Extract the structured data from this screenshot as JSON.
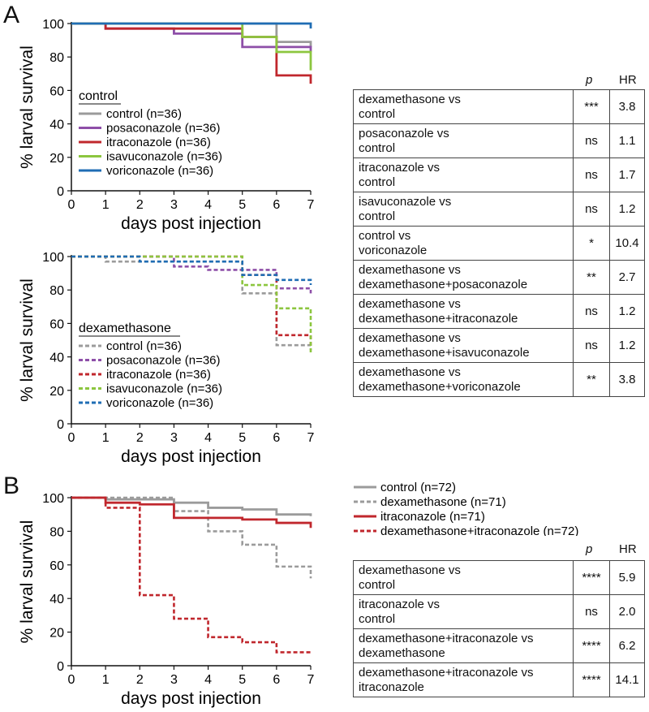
{
  "panels": {
    "a": {
      "letter": "A"
    },
    "b": {
      "letter": "B"
    }
  },
  "table_headers": {
    "p": "p",
    "hr": "HR"
  },
  "table_a": [
    {
      "comparison": "dexamethasone vs\ncontrol",
      "p": "***",
      "hr": "3.8"
    },
    {
      "comparison": "posaconazole vs\ncontrol",
      "p": "ns",
      "hr": "1.1"
    },
    {
      "comparison": "itraconazole vs\ncontrol",
      "p": "ns",
      "hr": "1.7"
    },
    {
      "comparison": "isavuconazole vs\ncontrol",
      "p": "ns",
      "hr": "1.2"
    },
    {
      "comparison": "control vs\nvoriconazole",
      "p": "*",
      "hr": "10.4"
    },
    {
      "comparison": "dexamethasone vs\ndexamethasone+posaconazole",
      "p": "**",
      "hr": "2.7"
    },
    {
      "comparison": "dexamethasone vs\ndexamethasone+itraconazole",
      "p": "ns",
      "hr": "1.2"
    },
    {
      "comparison": "dexamethasone vs\ndexamethasone+isavuconazole",
      "p": "ns",
      "hr": "1.2"
    },
    {
      "comparison": "dexamethasone vs\ndexamethasone+voriconazole",
      "p": "**",
      "hr": "3.8"
    }
  ],
  "table_b": [
    {
      "comparison": "dexamethasone vs\ncontrol",
      "p": "****",
      "hr": "5.9"
    },
    {
      "comparison": "itraconazole vs\ncontrol",
      "p": "ns",
      "hr": "2.0"
    },
    {
      "comparison": "dexamethasone+itraconazole vs\ndexamethasone",
      "p": "****",
      "hr": "6.2"
    },
    {
      "comparison": "dexamethasone+itraconazole vs\nitraconazole",
      "p": "****",
      "hr": "14.1"
    }
  ],
  "chart_data": [
    {
      "id": "a-control",
      "type": "line",
      "step": true,
      "xlabel": "days post injection",
      "ylabel": "% larval survival",
      "xlim": [
        0,
        7
      ],
      "ylim": [
        0,
        100
      ],
      "xticks": [
        0,
        1,
        2,
        3,
        4,
        5,
        6,
        7
      ],
      "yticks": [
        0,
        20,
        40,
        60,
        80,
        100
      ],
      "legend_title": "control",
      "series": [
        {
          "name": "control (n=36)",
          "color": "#9b9b9b",
          "dash": false,
          "x": [
            0,
            1,
            3,
            5,
            6,
            6,
            7
          ],
          "y": [
            100,
            100,
            100,
            100,
            97,
            89,
            86
          ]
        },
        {
          "name": "posaconazole (n=36)",
          "color": "#8e4fa8",
          "dash": false,
          "x": [
            0,
            1,
            3,
            5,
            6,
            7
          ],
          "y": [
            100,
            97,
            94,
            86,
            86,
            83
          ]
        },
        {
          "name": "itraconazole (n=36)",
          "color": "#c0272d",
          "dash": false,
          "x": [
            0,
            1,
            5,
            6,
            7
          ],
          "y": [
            100,
            97,
            92,
            69,
            64
          ]
        },
        {
          "name": "isavuconazole (n=36)",
          "color": "#8cc63f",
          "dash": false,
          "x": [
            0,
            5,
            6,
            7
          ],
          "y": [
            100,
            92,
            83,
            72
          ]
        },
        {
          "name": "voriconazole (n=36)",
          "color": "#1f6db4",
          "dash": false,
          "x": [
            0,
            7
          ],
          "y": [
            100,
            97
          ]
        }
      ]
    },
    {
      "id": "a-dexamethasone",
      "type": "line",
      "step": true,
      "xlabel": "days post injection",
      "ylabel": "% larval survival",
      "xlim": [
        0,
        7
      ],
      "ylim": [
        0,
        100
      ],
      "xticks": [
        0,
        1,
        2,
        3,
        4,
        5,
        6,
        7
      ],
      "yticks": [
        0,
        20,
        40,
        60,
        80,
        100
      ],
      "legend_title": "dexamethasone",
      "series": [
        {
          "name": "control (n=36)",
          "color": "#9b9b9b",
          "dash": true,
          "x": [
            0,
            1,
            5,
            6,
            7
          ],
          "y": [
            100,
            97,
            78,
            47,
            44
          ]
        },
        {
          "name": "posaconazole (n=36)",
          "color": "#8e4fa8",
          "dash": true,
          "x": [
            0,
            3,
            4,
            5,
            6,
            7
          ],
          "y": [
            100,
            94,
            92,
            92,
            81,
            78
          ]
        },
        {
          "name": "itraconazole (n=36)",
          "color": "#c0272d",
          "dash": true,
          "x": [
            0,
            5,
            6,
            7
          ],
          "y": [
            100,
            89,
            53,
            47
          ]
        },
        {
          "name": "isavuconazole (n=36)",
          "color": "#8cc63f",
          "dash": true,
          "x": [
            0,
            5,
            6,
            7
          ],
          "y": [
            100,
            83,
            69,
            42
          ]
        },
        {
          "name": "voriconazole (n=36)",
          "color": "#1f6db4",
          "dash": true,
          "x": [
            0,
            2,
            5,
            6,
            7
          ],
          "y": [
            100,
            97,
            89,
            86,
            83
          ]
        }
      ]
    },
    {
      "id": "b-main",
      "type": "line",
      "step": true,
      "xlabel": "days post injection",
      "ylabel": "% larval survival",
      "xlim": [
        0,
        7
      ],
      "ylim": [
        0,
        100
      ],
      "xticks": [
        0,
        1,
        2,
        3,
        4,
        5,
        6,
        7
      ],
      "yticks": [
        0,
        20,
        40,
        60,
        80,
        100
      ],
      "legend_title": "",
      "series": [
        {
          "name": "control (n=72)",
          "color": "#9b9b9b",
          "dash": false,
          "x": [
            0,
            1,
            3,
            4,
            5,
            6,
            7
          ],
          "y": [
            100,
            99,
            97,
            94,
            93,
            90,
            89
          ]
        },
        {
          "name": "dexamethasone (n=71)",
          "color": "#9b9b9b",
          "dash": true,
          "x": [
            0,
            2,
            3,
            4,
            5,
            6,
            7
          ],
          "y": [
            100,
            100,
            92,
            80,
            72,
            59,
            52
          ]
        },
        {
          "name": "itraconazole (n=71)",
          "color": "#c0272d",
          "dash": false,
          "x": [
            0,
            1,
            2,
            3,
            5,
            6,
            7
          ],
          "y": [
            100,
            97,
            96,
            88,
            87,
            85,
            82
          ]
        },
        {
          "name": "dexamethasone+itraconazole (n=72)",
          "color": "#c0272d",
          "dash": true,
          "x": [
            0,
            1,
            2,
            3,
            4,
            5,
            6,
            7
          ],
          "y": [
            100,
            94,
            42,
            28,
            17,
            14,
            8,
            7
          ]
        }
      ]
    }
  ]
}
